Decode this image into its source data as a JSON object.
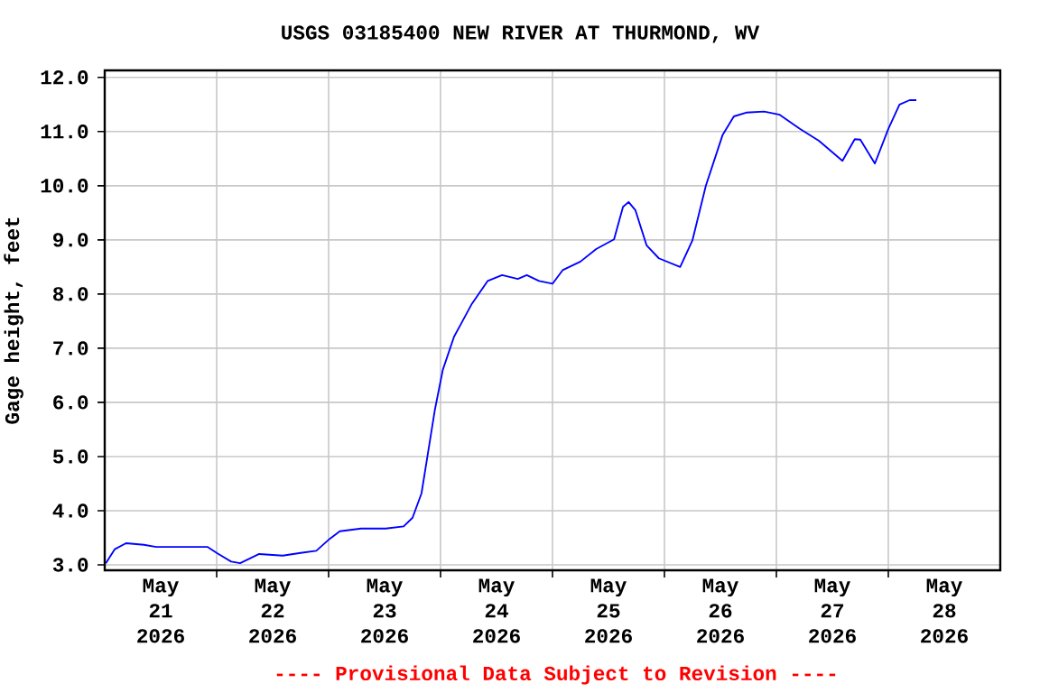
{
  "chart_data": {
    "type": "line",
    "title": "USGS 03185400 NEW RIVER AT THURMOND, WV",
    "ylabel": "Gage height, feet",
    "annotations": [
      "---- Provisional Data Subject to Revision ----"
    ],
    "xlim": [
      "2026-05-21",
      "2026-05-29"
    ],
    "ylim": [
      2.9,
      12.13
    ],
    "xticks": [
      {
        "value": "2026-05-21T12:00",
        "label": "May 21 2026"
      },
      {
        "value": "2026-05-22T12:00",
        "label": "May 22 2026"
      },
      {
        "value": "2026-05-23T12:00",
        "label": "May 23 2026"
      },
      {
        "value": "2026-05-24T12:00",
        "label": "May 24 2026"
      },
      {
        "value": "2026-05-25T12:00",
        "label": "May 25 2026"
      },
      {
        "value": "2026-05-26T12:00",
        "label": "May 26 2026"
      },
      {
        "value": "2026-05-27T12:00",
        "label": "May 27 2026"
      },
      {
        "value": "2026-05-28T12:00",
        "label": "May 28 2026"
      },
      {
        "value": "2026-05-22",
        "label": null
      },
      {
        "value": "2026-05-23",
        "label": null
      },
      {
        "value": "2026-05-24",
        "label": null
      },
      {
        "value": "2026-05-25",
        "label": null
      },
      {
        "value": "2026-05-26",
        "label": null
      },
      {
        "value": "2026-05-27",
        "label": null
      },
      {
        "value": "2026-05-28",
        "label": null
      }
    ],
    "yticks": [
      {
        "value": 3,
        "label": "3.0"
      },
      {
        "value": 4,
        "label": "4.0"
      },
      {
        "value": 5,
        "label": "5.0"
      },
      {
        "value": 6,
        "label": "6.0"
      },
      {
        "value": 7,
        "label": "7.0"
      },
      {
        "value": 8,
        "label": "8.0"
      },
      {
        "value": 9,
        "label": "9.0"
      },
      {
        "value": 10,
        "label": "10.0"
      },
      {
        "value": 11,
        "label": "11.0"
      },
      {
        "value": 12,
        "label": "12.0"
      }
    ],
    "grid": true,
    "x": [
      "2026-05-21T00:14",
      "2026-05-21T02:10",
      "2026-05-21T04:34",
      "2026-05-21T08:24",
      "2026-05-21T11:02",
      "2026-05-21T22:05",
      "2026-05-22T00:00",
      "2026-05-22T03:07",
      "2026-05-22T05:02",
      "2026-05-22T09:07",
      "2026-05-22T14:10",
      "2026-05-22T18:00",
      "2026-05-22T21:22",
      "2026-05-23T00:14",
      "2026-05-23T02:24",
      "2026-05-23T06:58",
      "2026-05-23T12:14",
      "2026-05-23T16:05",
      "2026-05-23T18:00",
      "2026-05-23T19:55",
      "2026-05-23T21:22",
      "2026-05-23T22:48",
      "2026-05-24T00:29",
      "2026-05-24T02:53",
      "2026-05-24T06:43",
      "2026-05-24T10:05",
      "2026-05-24T13:12",
      "2026-05-24T16:34",
      "2026-05-24T18:29",
      "2026-05-24T21:07",
      "2026-05-25T00:00",
      "2026-05-25T02:10",
      "2026-05-25T06:00",
      "2026-05-25T09:22",
      "2026-05-25T13:12",
      "2026-05-25T15:07",
      "2026-05-25T16:19",
      "2026-05-25T17:46",
      "2026-05-25T20:10",
      "2026-05-25T22:48",
      "2026-05-26T03:22",
      "2026-05-26T06:00",
      "2026-05-26T08:53",
      "2026-05-26T12:29",
      "2026-05-26T14:53",
      "2026-05-26T17:31",
      "2026-05-26T21:22",
      "2026-05-27T00:43",
      "2026-05-27T05:02",
      "2026-05-27T09:07",
      "2026-05-27T14:10",
      "2026-05-27T16:48",
      "2026-05-27T18:00",
      "2026-05-27T21:07",
      "2026-05-28T00:00",
      "2026-05-28T02:24",
      "2026-05-28T04:34",
      "2026-05-28T06:00"
    ],
    "series": [
      {
        "color": "#0000ff",
        "values": [
          3.03,
          3.29,
          3.4,
          3.37,
          3.33,
          3.33,
          3.22,
          3.06,
          3.03,
          3.2,
          3.17,
          3.22,
          3.26,
          3.48,
          3.62,
          3.67,
          3.67,
          3.71,
          3.87,
          4.32,
          5.1,
          5.87,
          6.6,
          7.21,
          7.82,
          8.24,
          8.35,
          8.28,
          8.35,
          8.24,
          8.19,
          8.44,
          8.6,
          8.83,
          9.01,
          9.61,
          9.7,
          9.55,
          8.9,
          8.66,
          8.5,
          8.99,
          10.0,
          10.94,
          11.28,
          11.35,
          11.37,
          11.31,
          11.05,
          10.83,
          10.46,
          10.86,
          10.85,
          10.41,
          11.05,
          11.5,
          11.58,
          11.58
        ]
      }
    ]
  }
}
